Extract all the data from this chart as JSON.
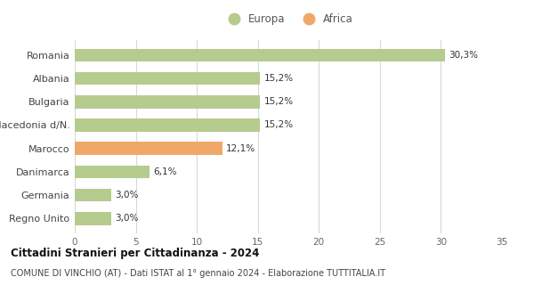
{
  "categories": [
    "Regno Unito",
    "Germania",
    "Danimarca",
    "Marocco",
    "Macedonia d/N.",
    "Bulgaria",
    "Albania",
    "Romania"
  ],
  "values": [
    3.0,
    3.0,
    6.1,
    12.1,
    15.2,
    15.2,
    15.2,
    30.3
  ],
  "labels": [
    "3,0%",
    "3,0%",
    "6,1%",
    "12,1%",
    "15,2%",
    "15,2%",
    "15,2%",
    "30,3%"
  ],
  "continents": [
    "Europa",
    "Europa",
    "Europa",
    "Africa",
    "Europa",
    "Europa",
    "Europa",
    "Europa"
  ],
  "color_europa": "#b5cc8e",
  "color_africa": "#f0a868",
  "legend_europa": "Europa",
  "legend_africa": "Africa",
  "xlim": [
    0,
    35
  ],
  "xticks": [
    0,
    5,
    10,
    15,
    20,
    25,
    30,
    35
  ],
  "title_bold": "Cittadini Stranieri per Cittadinanza - 2024",
  "subtitle": "COMUNE DI VINCHIO (AT) - Dati ISTAT al 1° gennaio 2024 - Elaborazione TUTTITALIA.IT",
  "background_color": "#ffffff",
  "grid_color": "#d8d8d8",
  "bar_height": 0.55
}
